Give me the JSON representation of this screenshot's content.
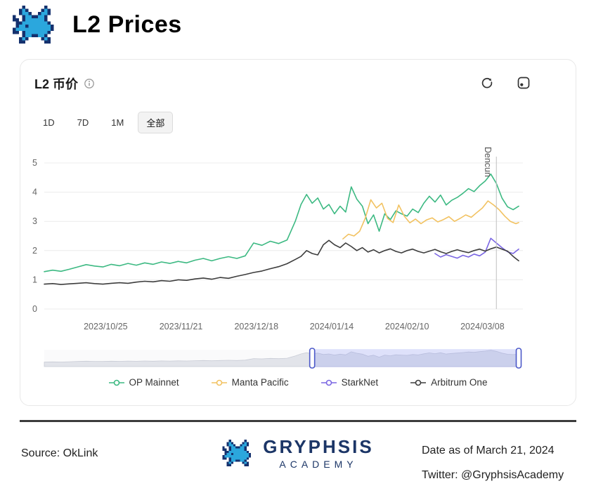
{
  "page": {
    "title": "L2 Prices"
  },
  "card": {
    "title": "L2 币价",
    "icons": [
      "info-icon",
      "refresh-icon",
      "screenshot-icon"
    ],
    "range_buttons": [
      {
        "label": "1D",
        "selected": false
      },
      {
        "label": "7D",
        "selected": false
      },
      {
        "label": "1M",
        "selected": false
      },
      {
        "label": "全部",
        "selected": true
      }
    ]
  },
  "chart_data": {
    "type": "line",
    "title": "L2 币价",
    "xlabel": "",
    "ylabel": "",
    "ylim": [
      0,
      5
    ],
    "yticks": [
      0,
      1,
      2,
      3,
      4,
      5
    ],
    "grid": true,
    "legend_position": "bottom",
    "x_domain_days": [
      0,
      170
    ],
    "xticks": [
      {
        "day": 22,
        "label": "2023/10/25"
      },
      {
        "day": 49,
        "label": "2023/11/21"
      },
      {
        "day": 76,
        "label": "2023/12/18"
      },
      {
        "day": 103,
        "label": "2024/01/14"
      },
      {
        "day": 130,
        "label": "2024/02/10"
      },
      {
        "day": 157,
        "label": "2024/03/08"
      }
    ],
    "annotation": {
      "day": 162,
      "label": "Dencun",
      "line_color": "#c0c0c0"
    },
    "brush": {
      "start_day": 96,
      "end_day": 170,
      "handle_color": "#4c59c9",
      "fill": "#7c89f5",
      "fill_opacity": 0.22
    },
    "series": [
      {
        "name": "OP Mainnet",
        "color": "#3cb982",
        "points": [
          [
            0,
            1.28
          ],
          [
            3,
            1.33
          ],
          [
            6,
            1.29
          ],
          [
            9,
            1.36
          ],
          [
            12,
            1.44
          ],
          [
            15,
            1.52
          ],
          [
            18,
            1.47
          ],
          [
            21,
            1.44
          ],
          [
            24,
            1.53
          ],
          [
            27,
            1.48
          ],
          [
            30,
            1.56
          ],
          [
            33,
            1.5
          ],
          [
            36,
            1.58
          ],
          [
            39,
            1.53
          ],
          [
            42,
            1.61
          ],
          [
            45,
            1.56
          ],
          [
            48,
            1.63
          ],
          [
            51,
            1.58
          ],
          [
            54,
            1.67
          ],
          [
            57,
            1.73
          ],
          [
            60,
            1.65
          ],
          [
            63,
            1.73
          ],
          [
            66,
            1.79
          ],
          [
            69,
            1.73
          ],
          [
            72,
            1.82
          ],
          [
            75,
            2.26
          ],
          [
            78,
            2.18
          ],
          [
            81,
            2.32
          ],
          [
            84,
            2.24
          ],
          [
            87,
            2.36
          ],
          [
            90,
            3.02
          ],
          [
            92,
            3.58
          ],
          [
            94,
            3.92
          ],
          [
            96,
            3.62
          ],
          [
            98,
            3.8
          ],
          [
            100,
            3.42
          ],
          [
            102,
            3.58
          ],
          [
            104,
            3.26
          ],
          [
            106,
            3.52
          ],
          [
            108,
            3.32
          ],
          [
            110,
            4.18
          ],
          [
            112,
            3.76
          ],
          [
            114,
            3.52
          ],
          [
            116,
            2.92
          ],
          [
            118,
            3.22
          ],
          [
            120,
            2.66
          ],
          [
            122,
            3.26
          ],
          [
            124,
            3.06
          ],
          [
            126,
            3.36
          ],
          [
            128,
            3.26
          ],
          [
            130,
            3.18
          ],
          [
            132,
            3.42
          ],
          [
            134,
            3.3
          ],
          [
            136,
            3.62
          ],
          [
            138,
            3.86
          ],
          [
            140,
            3.66
          ],
          [
            142,
            3.9
          ],
          [
            144,
            3.56
          ],
          [
            146,
            3.72
          ],
          [
            148,
            3.82
          ],
          [
            150,
            3.96
          ],
          [
            152,
            4.12
          ],
          [
            154,
            4.02
          ],
          [
            156,
            4.22
          ],
          [
            158,
            4.38
          ],
          [
            160,
            4.62
          ],
          [
            162,
            4.3
          ],
          [
            164,
            3.8
          ],
          [
            166,
            3.5
          ],
          [
            168,
            3.4
          ],
          [
            170,
            3.52
          ]
        ]
      },
      {
        "name": "Manta Pacific",
        "color": "#f2c261",
        "points": [
          [
            107,
            2.4
          ],
          [
            109,
            2.56
          ],
          [
            111,
            2.5
          ],
          [
            113,
            2.66
          ],
          [
            115,
            3.1
          ],
          [
            117,
            3.74
          ],
          [
            119,
            3.46
          ],
          [
            121,
            3.62
          ],
          [
            123,
            3.1
          ],
          [
            125,
            2.96
          ],
          [
            127,
            3.56
          ],
          [
            129,
            3.18
          ],
          [
            131,
            2.95
          ],
          [
            133,
            3.08
          ],
          [
            135,
            2.92
          ],
          [
            137,
            3.05
          ],
          [
            139,
            3.12
          ],
          [
            141,
            2.98
          ],
          [
            143,
            3.06
          ],
          [
            145,
            3.16
          ],
          [
            147,
            3.0
          ],
          [
            149,
            3.1
          ],
          [
            151,
            3.22
          ],
          [
            153,
            3.14
          ],
          [
            155,
            3.3
          ],
          [
            157,
            3.46
          ],
          [
            159,
            3.7
          ],
          [
            161,
            3.56
          ],
          [
            163,
            3.4
          ],
          [
            165,
            3.18
          ],
          [
            167,
            3.0
          ],
          [
            169,
            2.92
          ],
          [
            170,
            2.96
          ]
        ]
      },
      {
        "name": "StarkNet",
        "color": "#7a66e3",
        "points": [
          [
            140,
            1.9
          ],
          [
            142,
            1.78
          ],
          [
            144,
            1.86
          ],
          [
            146,
            1.8
          ],
          [
            148,
            1.74
          ],
          [
            150,
            1.84
          ],
          [
            152,
            1.78
          ],
          [
            154,
            1.88
          ],
          [
            156,
            1.82
          ],
          [
            158,
            1.95
          ],
          [
            160,
            2.42
          ],
          [
            162,
            2.26
          ],
          [
            164,
            2.1
          ],
          [
            166,
            1.96
          ],
          [
            168,
            1.9
          ],
          [
            170,
            2.05
          ]
        ]
      },
      {
        "name": "Arbitrum One",
        "color": "#3d3d3d",
        "points": [
          [
            0,
            0.85
          ],
          [
            3,
            0.87
          ],
          [
            6,
            0.84
          ],
          [
            9,
            0.86
          ],
          [
            12,
            0.88
          ],
          [
            15,
            0.9
          ],
          [
            18,
            0.87
          ],
          [
            21,
            0.85
          ],
          [
            24,
            0.88
          ],
          [
            27,
            0.9
          ],
          [
            30,
            0.88
          ],
          [
            33,
            0.92
          ],
          [
            36,
            0.95
          ],
          [
            39,
            0.93
          ],
          [
            42,
            0.97
          ],
          [
            45,
            0.95
          ],
          [
            48,
            1.0
          ],
          [
            51,
            0.98
          ],
          [
            54,
            1.03
          ],
          [
            57,
            1.06
          ],
          [
            60,
            1.02
          ],
          [
            63,
            1.08
          ],
          [
            66,
            1.05
          ],
          [
            69,
            1.12
          ],
          [
            72,
            1.18
          ],
          [
            75,
            1.25
          ],
          [
            78,
            1.3
          ],
          [
            81,
            1.38
          ],
          [
            84,
            1.45
          ],
          [
            87,
            1.55
          ],
          [
            90,
            1.7
          ],
          [
            92,
            1.8
          ],
          [
            94,
            2.0
          ],
          [
            96,
            1.9
          ],
          [
            98,
            1.85
          ],
          [
            100,
            2.2
          ],
          [
            102,
            2.35
          ],
          [
            104,
            2.2
          ],
          [
            106,
            2.1
          ],
          [
            108,
            2.26
          ],
          [
            110,
            2.14
          ],
          [
            112,
            2.0
          ],
          [
            114,
            2.1
          ],
          [
            116,
            1.95
          ],
          [
            118,
            2.03
          ],
          [
            120,
            1.92
          ],
          [
            122,
            2.0
          ],
          [
            124,
            2.06
          ],
          [
            126,
            1.97
          ],
          [
            128,
            1.92
          ],
          [
            130,
            2.0
          ],
          [
            132,
            2.05
          ],
          [
            134,
            1.97
          ],
          [
            136,
            1.92
          ],
          [
            138,
            1.98
          ],
          [
            140,
            2.04
          ],
          [
            142,
            1.96
          ],
          [
            144,
            1.9
          ],
          [
            146,
            1.97
          ],
          [
            148,
            2.03
          ],
          [
            150,
            1.97
          ],
          [
            152,
            1.93
          ],
          [
            154,
            2.0
          ],
          [
            156,
            2.05
          ],
          [
            158,
            1.98
          ],
          [
            160,
            2.06
          ],
          [
            162,
            2.12
          ],
          [
            164,
            2.05
          ],
          [
            166,
            1.98
          ],
          [
            168,
            1.8
          ],
          [
            170,
            1.65
          ]
        ]
      }
    ]
  },
  "footer": {
    "source": "Source: OkLink",
    "brand": "GRYPHSIS",
    "brand_sub": "ACADEMY",
    "date": "Date as of March 21, 2024",
    "twitter": "Twitter: @GryphsisAcademy"
  }
}
